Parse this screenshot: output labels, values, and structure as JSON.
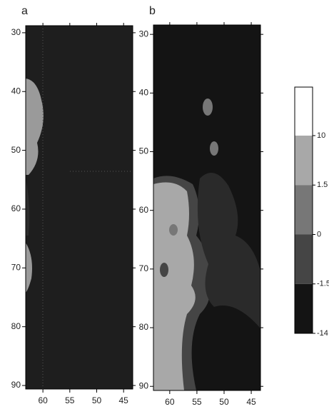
{
  "chart_data": [
    {
      "type": "contour",
      "panel_label": "a",
      "xlim": [
        63.2,
        43.3
      ],
      "ylim": [
        28.8,
        90.6
      ],
      "xticks": [
        60,
        55,
        50,
        45
      ],
      "yticks": [
        30,
        40,
        50,
        60,
        70,
        80,
        90
      ]
    },
    {
      "type": "contour",
      "panel_label": "b",
      "xlim": [
        63.0,
        43.3
      ],
      "ylim": [
        28.4,
        90.7
      ],
      "xticks": [
        60,
        55,
        50,
        45
      ],
      "yticks": [
        30,
        40,
        50,
        60,
        70,
        80,
        90
      ]
    },
    {
      "type": "colorbar",
      "ticks": [
        10,
        1.5,
        0,
        -1.5,
        -14
      ],
      "colors": [
        "#ffffff",
        "#a8a8a8",
        "#777777",
        "#454545",
        "#141414"
      ]
    }
  ]
}
